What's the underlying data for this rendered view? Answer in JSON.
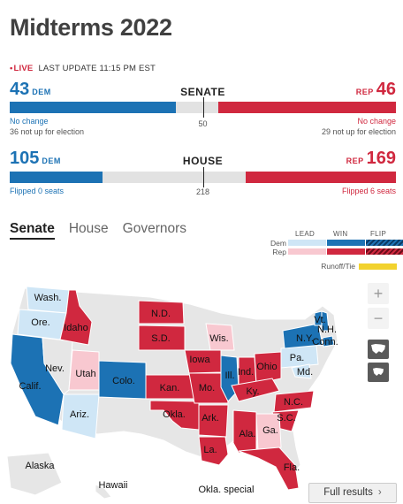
{
  "title": "Midterms 2022",
  "status": {
    "live": "LIVE",
    "last_update": "LAST UPDATE 11:15 PM EST"
  },
  "senate": {
    "label": "SENATE",
    "dem": {
      "count": "43",
      "party": "DEM",
      "note": "No change",
      "note2": "36 not up for election"
    },
    "rep": {
      "count": "46",
      "party": "REP",
      "note": "No change",
      "note2": "29 not up for election"
    },
    "majority": "50",
    "dem_share": 0.43,
    "rep_share": 0.46
  },
  "house": {
    "label": "HOUSE",
    "dem": {
      "count": "105",
      "party": "DEM",
      "note": "Flipped 0 seats"
    },
    "rep": {
      "count": "169",
      "party": "REP",
      "note": "Flipped 6 seats"
    },
    "majority": "218",
    "dem_share": 0.241,
    "rep_share": 0.389
  },
  "tabs": [
    {
      "label": "Senate",
      "active": true
    },
    {
      "label": "House",
      "active": false
    },
    {
      "label": "Governors",
      "active": false
    }
  ],
  "legend": {
    "headers": [
      "LEAD",
      "WIN",
      "FLIP"
    ],
    "rows": [
      "Dem",
      "Rep"
    ],
    "tie": "Runoff/Tie",
    "colors": {
      "dem_lead": "#cfe6f6",
      "dem_win": "#1c72b4",
      "rep_lead": "#f8c8d0",
      "rep_win": "#d0283f",
      "tie": "#f2d22e",
      "no_race": "#e6e6e6"
    }
  },
  "map": {
    "labels": [
      "Wash.",
      "Ore.",
      "Idaho",
      "Nev.",
      "Calif.",
      "Utah",
      "Ariz.",
      "Colo.",
      "N.D.",
      "S.D.",
      "Kan.",
      "Okla.",
      "Iowa",
      "Wis.",
      "Mo.",
      "Ark.",
      "La.",
      "Ill.",
      "Ind.",
      "Ohio",
      "Ky.",
      "Pa.",
      "N.Y.",
      "Vt.",
      "N.H.",
      "Conn.",
      "Md.",
      "N.C.",
      "S.C.",
      "Ga.",
      "Ala.",
      "Fla.",
      "Alaska",
      "Hawaii",
      "Okla. special"
    ]
  },
  "controls": {
    "zoom_in": "+",
    "zoom_out": "−",
    "full_results": "Full results",
    "chevron": "›"
  }
}
